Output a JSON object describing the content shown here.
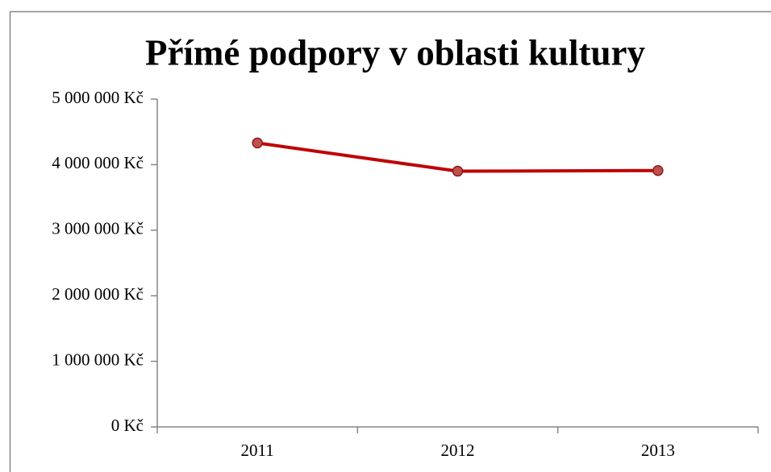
{
  "chart_data": {
    "type": "line",
    "title": "Přímé podpory v oblasti kultury",
    "categories": [
      "2011",
      "2012",
      "2013"
    ],
    "series": [
      {
        "name": "Přímé podpory",
        "color": "#c00000",
        "marker_color": "#c0504d",
        "values": [
          4330000,
          3900000,
          3910000
        ]
      }
    ],
    "ylim": [
      0,
      5000000
    ],
    "yticks": [
      {
        "value": 0,
        "label": "0 Kč"
      },
      {
        "value": 1000000,
        "label": "1 000 000 Kč"
      },
      {
        "value": 2000000,
        "label": "2 000 000 Kč"
      },
      {
        "value": 3000000,
        "label": "3 000 000 Kč"
      },
      {
        "value": 4000000,
        "label": "4 000 000 Kč"
      },
      {
        "value": 5000000,
        "label": "5 000 000 Kč"
      }
    ],
    "grid": false,
    "legend": false
  }
}
